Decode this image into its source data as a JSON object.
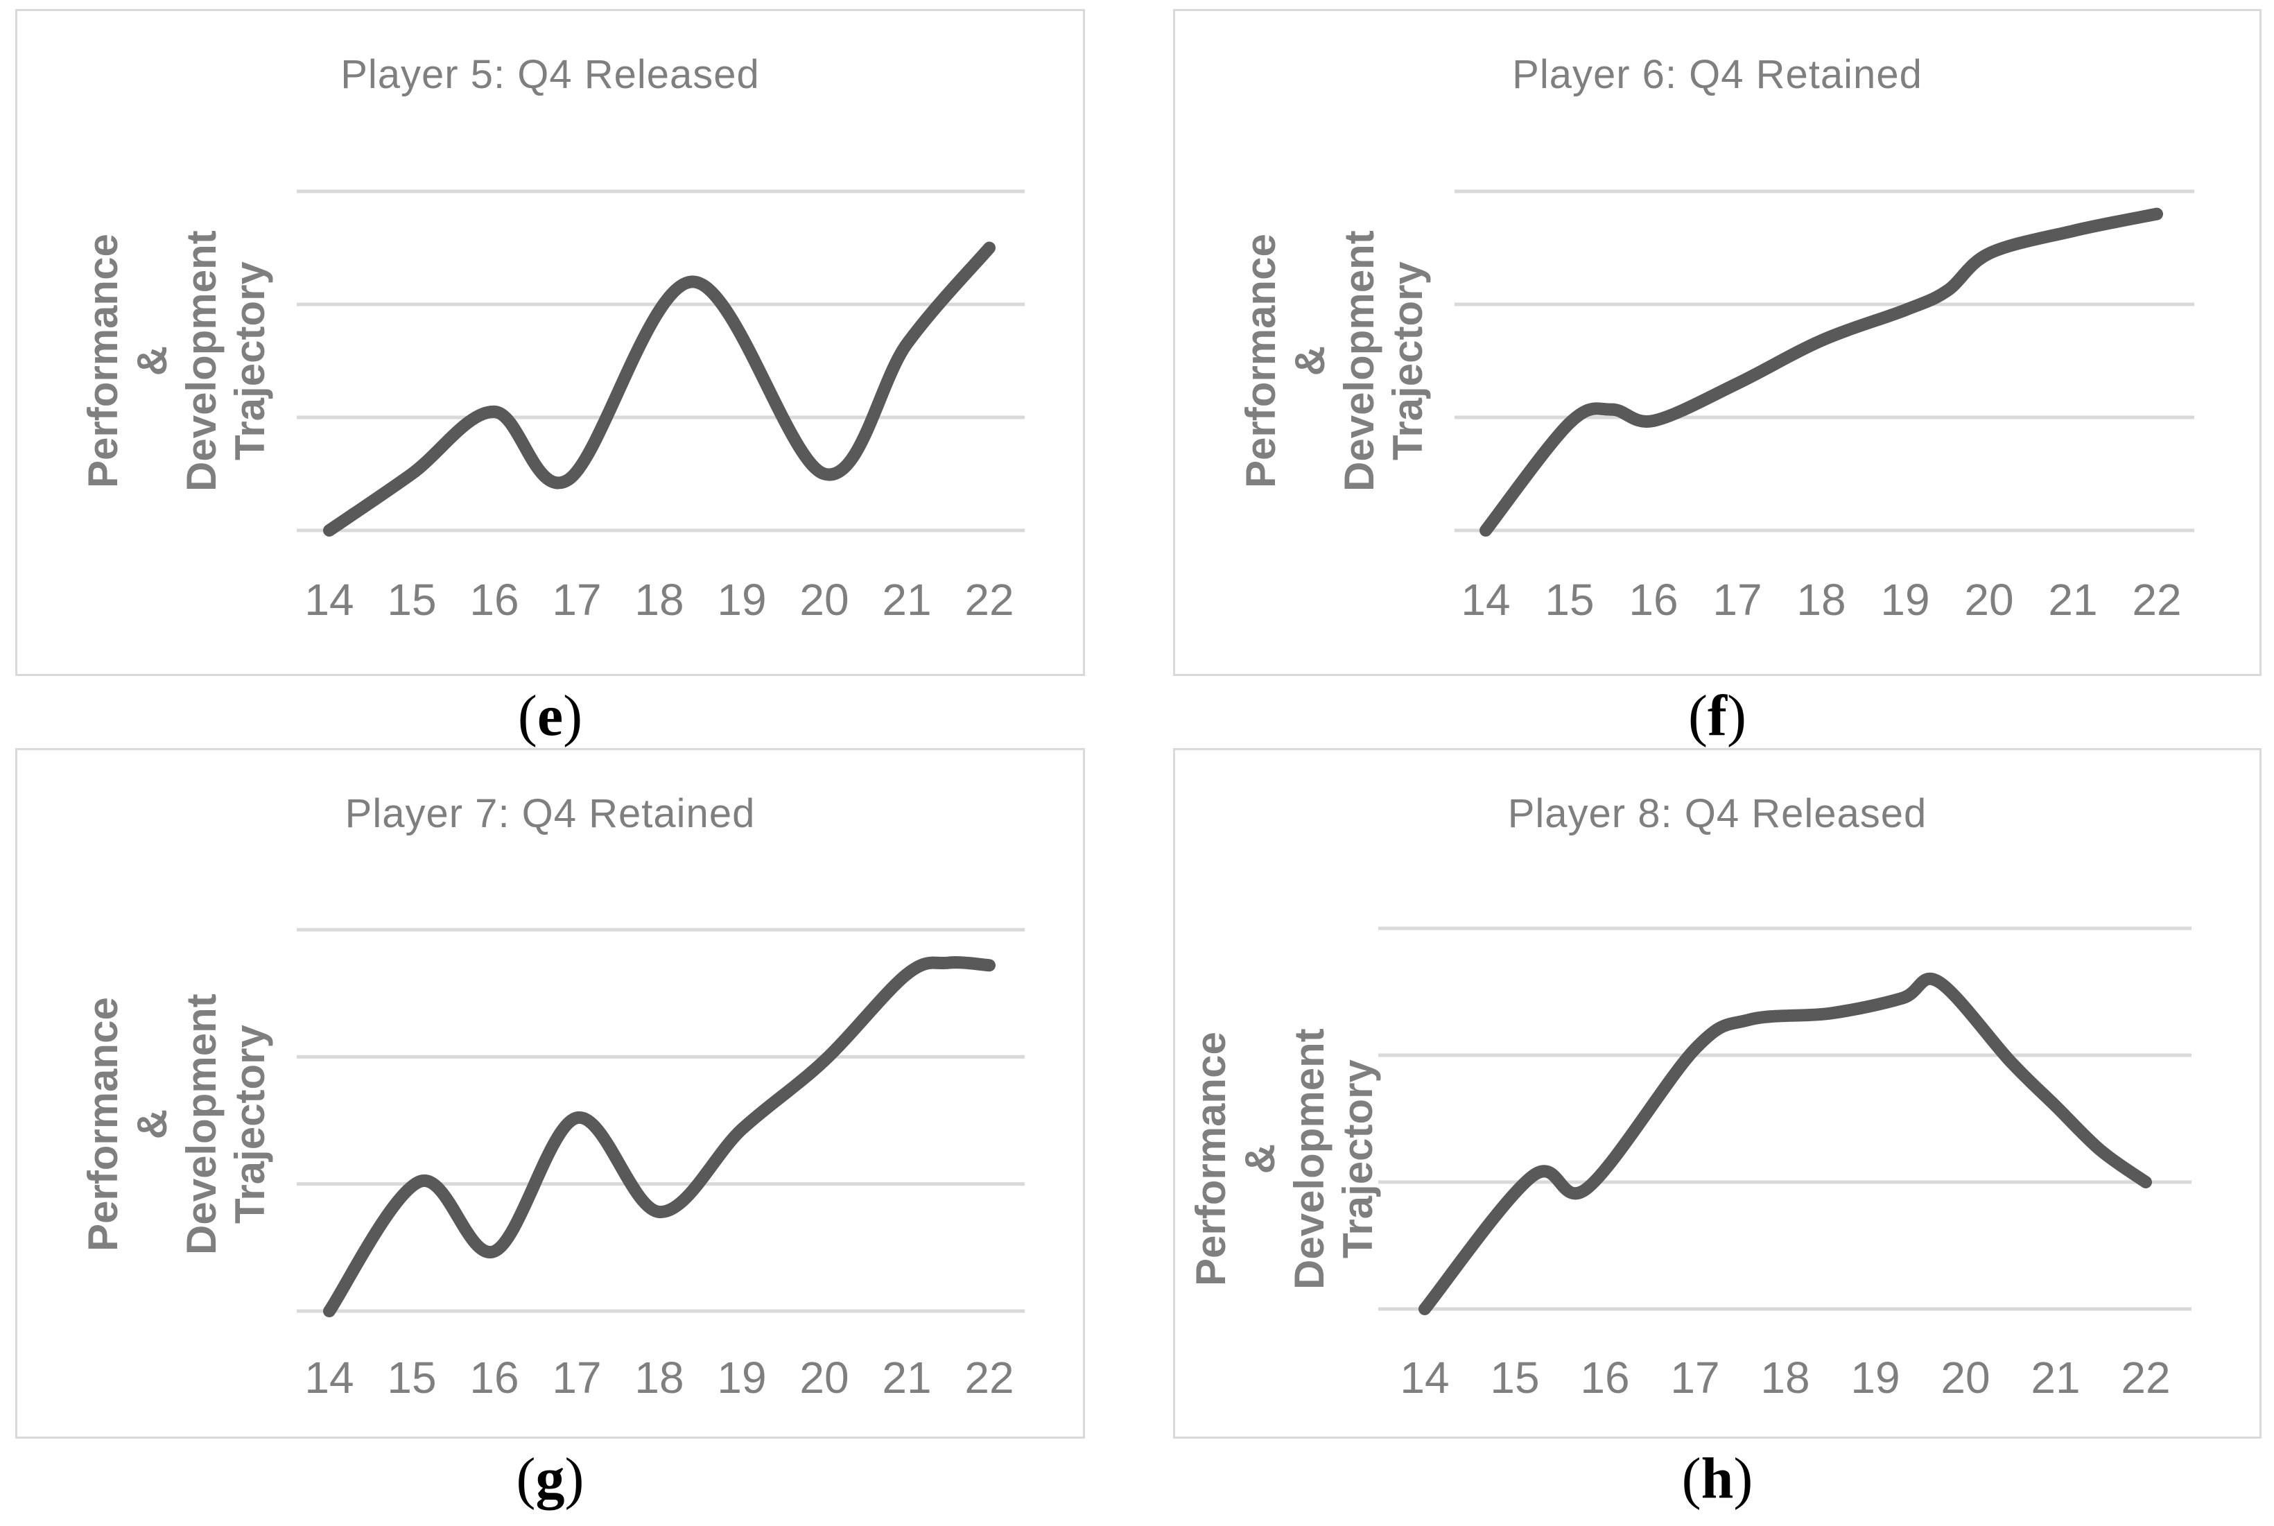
{
  "colors": {
    "line": "#595959",
    "gridline": "#d9d9d9",
    "panel_border": "#d9d9d9",
    "title_text": "#7f7f7f",
    "tick_text": "#7f7f7f",
    "caption_text": "#000000",
    "background": "#ffffff"
  },
  "chart_data": [
    {
      "panel": "e",
      "type": "line",
      "title": "Player 5: Q4 Released",
      "ylabel": "Performance & Development Trajectory",
      "ylabel_lines": [
        "Performance &",
        "Development",
        "Trajectory"
      ],
      "x_ticks": [
        "14",
        "15",
        "16",
        "17",
        "18",
        "19",
        "20",
        "21",
        "22"
      ],
      "xlim": [
        14,
        22
      ],
      "ylim": [
        0,
        3
      ],
      "gridline_values": [
        0,
        1,
        2,
        3
      ],
      "grid": "horizontal-only",
      "legend": "none",
      "caption": "(e)",
      "caption_open": "(",
      "caption_letter": "e",
      "caption_close": ")",
      "series": [
        {
          "name": "Performance & Development Trajectory",
          "x": [
            14,
            15,
            16,
            16.9,
            18.4,
            20,
            21,
            22
          ],
          "y": [
            0,
            0.5,
            1.05,
            0.45,
            2.2,
            0.5,
            1.65,
            2.5
          ]
        }
      ]
    },
    {
      "panel": "f",
      "type": "line",
      "title": "Player 6: Q4 Retained",
      "ylabel": "Performance & Development Trajectory",
      "ylabel_lines": [
        "Performance &",
        "Development",
        "Trajectory"
      ],
      "x_ticks": [
        "14",
        "15",
        "16",
        "17",
        "18",
        "19",
        "20",
        "21",
        "22"
      ],
      "xlim": [
        14,
        22
      ],
      "ylim": [
        0,
        3
      ],
      "gridline_values": [
        0,
        1,
        2,
        3
      ],
      "grid": "horizontal-only",
      "legend": "none",
      "caption": "(f)",
      "caption_open": "(",
      "caption_letter": "f",
      "caption_close": ")",
      "series": [
        {
          "name": "Performance & Development Trajectory",
          "x": [
            14,
            15,
            15.5,
            16,
            17,
            18,
            19,
            19.5,
            20,
            21,
            22
          ],
          "y": [
            0,
            0.95,
            1.07,
            0.97,
            1.3,
            1.68,
            1.95,
            2.12,
            2.45,
            2.65,
            2.8
          ]
        }
      ]
    },
    {
      "panel": "g",
      "type": "line",
      "title": "Player 7: Q4 Retained",
      "ylabel": "Performance & Development Trajectory",
      "ylabel_lines": [
        "Performance &",
        "Development",
        "Trajectory"
      ],
      "x_ticks": [
        "14",
        "15",
        "16",
        "17",
        "18",
        "19",
        "20",
        "21",
        "22"
      ],
      "xlim": [
        14,
        22
      ],
      "ylim": [
        0,
        3
      ],
      "gridline_values": [
        0,
        1,
        2,
        3
      ],
      "grid": "horizontal-only",
      "legend": "none",
      "caption": "(g)",
      "caption_open": "(",
      "caption_letter": "g",
      "caption_close": ")",
      "series": [
        {
          "name": "Performance & Development Trajectory",
          "x": [
            14,
            15.1,
            16,
            17,
            18,
            19,
            20,
            21,
            21.5,
            22
          ],
          "y": [
            0,
            1.02,
            0.47,
            1.52,
            0.78,
            1.43,
            1.97,
            2.65,
            2.74,
            2.72
          ]
        }
      ]
    },
    {
      "panel": "h",
      "type": "line",
      "title": "Player 8: Q4 Released",
      "ylabel": "Performance & Development Trajectory",
      "ylabel_lines": [
        "Performance &",
        "Development Trajectory"
      ],
      "x_ticks": [
        "14",
        "15",
        "16",
        "17",
        "18",
        "19",
        "20",
        "21",
        "22"
      ],
      "xlim": [
        14,
        22
      ],
      "ylim": [
        0,
        3
      ],
      "gridline_values": [
        0,
        1,
        2,
        3
      ],
      "grid": "horizontal-only",
      "legend": "none",
      "caption": "(h)",
      "caption_open": "(",
      "caption_letter": "h",
      "caption_close": ")",
      "series": [
        {
          "name": "Performance & Development Trajectory",
          "x": [
            14,
            15.2,
            15.8,
            17,
            17.6,
            18.5,
            19.3,
            19.7,
            20.5,
            21,
            21.5,
            22
          ],
          "y": [
            0,
            1.05,
            0.95,
            2.05,
            2.28,
            2.33,
            2.45,
            2.58,
            1.95,
            1.6,
            1.25,
            1.0
          ]
        }
      ]
    }
  ]
}
